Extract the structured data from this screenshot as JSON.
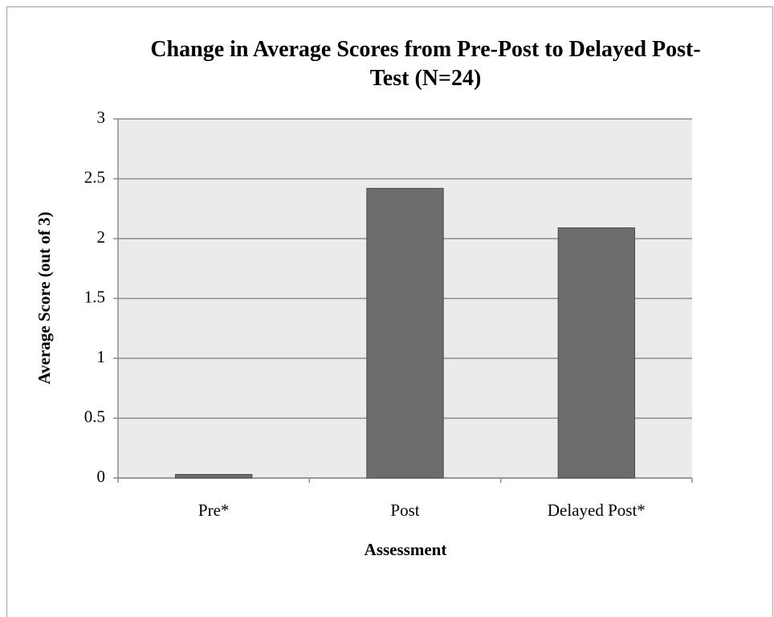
{
  "chart_data": {
    "type": "bar",
    "title": "Change in Average Scores from Pre-Post to Delayed Post-Test (N=24)",
    "x_label": "Assessment",
    "y_label": "Average Score (out of 3)",
    "categories": [
      "Pre*",
      "Post",
      "Delayed Post*"
    ],
    "values": [
      0.03,
      2.42,
      2.09
    ],
    "color": "#6d6d6d",
    "ylim": [
      0,
      3
    ],
    "yticks": [
      0,
      0.5,
      1,
      1.5,
      2,
      2.5,
      3
    ],
    "grid": true
  }
}
